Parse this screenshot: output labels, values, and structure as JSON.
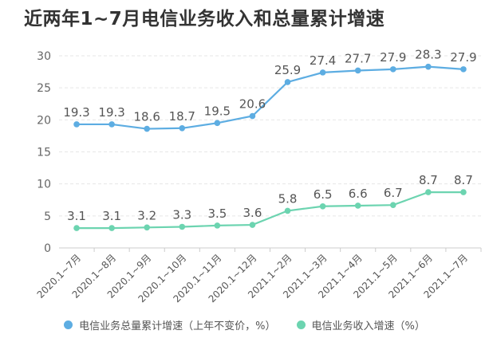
{
  "chart_data": {
    "type": "line",
    "title": "近两年1~7月电信业务收入和总量累计增速",
    "categories": [
      "2020.1~7月",
      "2020.1~8月",
      "2020.1~9月",
      "2020.1~10月",
      "2020.1~11月",
      "2020.1~12月",
      "2021.1~2月",
      "2021.1~3月",
      "2021.1~4月",
      "2021.1~5月",
      "2021.1~6月",
      "2021.1~7月"
    ],
    "ylim": [
      0,
      30
    ],
    "yticks": [
      0,
      5,
      10,
      15,
      20,
      25,
      30
    ],
    "grid": true,
    "legend_position": "bottom",
    "series": [
      {
        "name": "电信业务总量累计增速（上年不变价，%）",
        "color": "#5dade2",
        "values": [
          19.3,
          19.3,
          18.6,
          18.7,
          19.5,
          20.6,
          25.9,
          27.4,
          27.7,
          27.9,
          28.3,
          27.9
        ],
        "labels": [
          "19.3",
          "19.3",
          "18.6",
          "18.7",
          "19.5",
          "20.6",
          "25.9",
          "27.4",
          "27.7",
          "27.9",
          "28.3",
          "27.9"
        ]
      },
      {
        "name": "电信业务收入增速（%）",
        "color": "#6cd4b0",
        "values": [
          3.1,
          3.1,
          3.2,
          3.3,
          3.5,
          3.6,
          5.8,
          6.5,
          6.6,
          6.7,
          8.7,
          8.7
        ],
        "labels": [
          "3.1",
          "3.1",
          "3.2",
          "3.3",
          "3.5",
          "3.6",
          "5.8",
          "6.5",
          "6.6",
          "6.7",
          "8.7",
          "8.7"
        ]
      }
    ]
  }
}
